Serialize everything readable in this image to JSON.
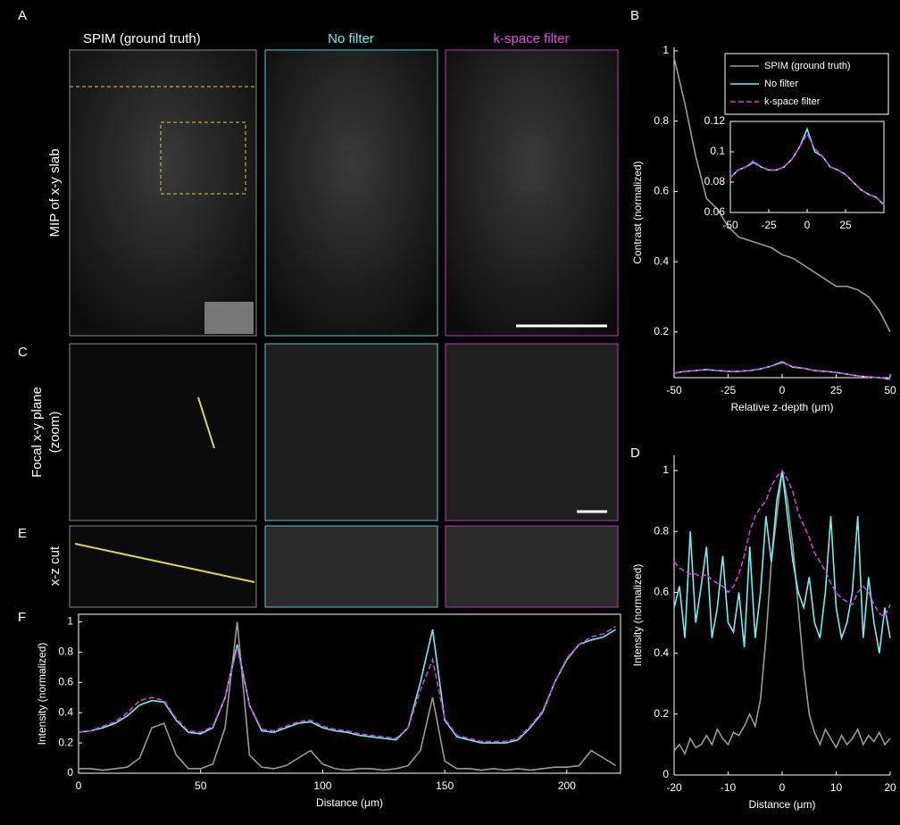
{
  "figure": {
    "panel_labels": [
      "A",
      "B",
      "C",
      "D",
      "E",
      "F"
    ],
    "column_titles": [
      "SPIM (ground truth)",
      "No filter",
      "k-space filter"
    ],
    "row_labels": [
      [
        "MIP of x-y slab"
      ],
      [
        "Focal x-y plane",
        "(zoom)"
      ],
      [
        "x-z cut"
      ]
    ]
  },
  "chart_data": [
    {
      "type": "line",
      "xlabel": "Relative z-depth (μm)",
      "ylabel": "Contrast (normalized)",
      "x": [
        -50,
        -45,
        -40,
        -35,
        -30,
        -25,
        -20,
        -15,
        -10,
        -5,
        0,
        5,
        10,
        15,
        20,
        25,
        30,
        35,
        40,
        45,
        50
      ],
      "xlim": [
        -50,
        50
      ],
      "xticks": [
        -50,
        -25,
        0,
        25,
        50
      ],
      "ylim": [
        0.07,
        1.01
      ],
      "yticks": [
        0.2,
        0.4,
        0.6,
        0.8,
        1
      ],
      "legend": "upper right",
      "series": [
        {
          "name": "SPIM (ground truth)",
          "color": "#9a9a9a",
          "line_style": "solid",
          "values": [
            0.98,
            0.85,
            0.7,
            0.58,
            0.55,
            0.5,
            0.47,
            0.46,
            0.45,
            0.44,
            0.42,
            0.41,
            0.39,
            0.37,
            0.35,
            0.33,
            0.33,
            0.32,
            0.3,
            0.26,
            0.2
          ]
        },
        {
          "name": "No filter",
          "color": "#6ef0ee",
          "line_style": "solid",
          "values": [
            0.083,
            0.088,
            0.09,
            0.093,
            0.09,
            0.088,
            0.088,
            0.09,
            0.095,
            0.103,
            0.115,
            0.1,
            0.097,
            0.09,
            0.088,
            0.085,
            0.08,
            0.075,
            0.072,
            0.07,
            0.065
          ]
        },
        {
          "name": "k-space filter",
          "color": "#d23ed2",
          "line_style": "dashed",
          "values": [
            0.083,
            0.088,
            0.09,
            0.094,
            0.09,
            0.088,
            0.088,
            0.09,
            0.095,
            0.103,
            0.112,
            0.102,
            0.097,
            0.09,
            0.088,
            0.085,
            0.08,
            0.075,
            0.072,
            0.07,
            0.065
          ]
        }
      ]
    },
    {
      "type": "line",
      "x": [
        -50,
        -45,
        -40,
        -35,
        -30,
        -25,
        -20,
        -15,
        -10,
        -5,
        0,
        5,
        10,
        15,
        20,
        25,
        30,
        35,
        40,
        45,
        50
      ],
      "xlim": [
        -50,
        50
      ],
      "xticks": [
        -50,
        -25,
        0,
        25
      ],
      "ylim": [
        0.06,
        0.12
      ],
      "yticks": [
        0.06,
        0.08,
        0.1,
        0.12
      ],
      "series": [
        {
          "color": "#6ef0ee",
          "line_style": "solid",
          "values": [
            0.083,
            0.088,
            0.09,
            0.093,
            0.09,
            0.088,
            0.088,
            0.09,
            0.095,
            0.103,
            0.115,
            0.1,
            0.097,
            0.09,
            0.088,
            0.085,
            0.08,
            0.075,
            0.072,
            0.07,
            0.065
          ]
        },
        {
          "color": "#d23ed2",
          "line_style": "dashed",
          "values": [
            0.083,
            0.088,
            0.09,
            0.094,
            0.09,
            0.088,
            0.088,
            0.09,
            0.095,
            0.103,
            0.112,
            0.102,
            0.097,
            0.09,
            0.088,
            0.085,
            0.08,
            0.075,
            0.072,
            0.07,
            0.065
          ]
        }
      ]
    },
    {
      "type": "line",
      "xlabel": "Distance (μm)",
      "ylabel": "Intensity (normalized)",
      "x": [
        -20,
        -19,
        -18,
        -17,
        -16,
        -15,
        -14,
        -13,
        -12,
        -11,
        -10,
        -9,
        -8,
        -7,
        -6,
        -5,
        -4,
        -3,
        -2,
        -1,
        0,
        1,
        2,
        3,
        4,
        5,
        6,
        7,
        8,
        9,
        10,
        11,
        12,
        13,
        14,
        15,
        16,
        17,
        18,
        19,
        20
      ],
      "xlim": [
        -20,
        20
      ],
      "xticks": [
        -20,
        -10,
        0,
        10,
        20
      ],
      "ylim": [
        0,
        1.05
      ],
      "yticks": [
        0,
        0.2,
        0.4,
        0.6,
        0.8,
        1
      ],
      "series": [
        {
          "color": "#9a9a9a",
          "line_style": "solid",
          "values": [
            0.08,
            0.1,
            0.07,
            0.12,
            0.09,
            0.1,
            0.13,
            0.1,
            0.15,
            0.12,
            0.1,
            0.14,
            0.13,
            0.16,
            0.2,
            0.16,
            0.25,
            0.45,
            0.7,
            0.85,
            1,
            0.9,
            0.75,
            0.55,
            0.35,
            0.2,
            0.14,
            0.1,
            0.15,
            0.12,
            0.09,
            0.13,
            0.1,
            0.12,
            0.15,
            0.1,
            0.13,
            0.11,
            0.14,
            0.1,
            0.12
          ]
        },
        {
          "color": "#6ef0ee",
          "line_style": "solid",
          "values": [
            0.55,
            0.62,
            0.45,
            0.8,
            0.5,
            0.62,
            0.75,
            0.45,
            0.55,
            0.72,
            0.5,
            0.47,
            0.6,
            0.42,
            0.75,
            0.45,
            0.6,
            0.85,
            0.7,
            0.9,
            1,
            0.85,
            0.7,
            0.6,
            0.55,
            0.65,
            0.5,
            0.45,
            0.6,
            0.85,
            0.55,
            0.45,
            0.5,
            0.6,
            0.85,
            0.45,
            0.65,
            0.5,
            0.4,
            0.55,
            0.45
          ]
        },
        {
          "color": "#d23ed2",
          "line_style": "dashed",
          "values": [
            0.7,
            0.68,
            0.67,
            0.66,
            0.66,
            0.65,
            0.66,
            0.64,
            0.63,
            0.62,
            0.6,
            0.62,
            0.66,
            0.72,
            0.8,
            0.85,
            0.88,
            0.9,
            0.95,
            0.98,
            1,
            0.97,
            0.93,
            0.86,
            0.82,
            0.78,
            0.73,
            0.7,
            0.67,
            0.63,
            0.6,
            0.58,
            0.57,
            0.56,
            0.6,
            0.62,
            0.6,
            0.56,
            0.53,
            0.52,
            0.56
          ]
        }
      ]
    },
    {
      "type": "line",
      "xlabel": "Distance (μm)",
      "ylabel": "Intensity (normalized)",
      "x": [
        0,
        5,
        10,
        15,
        20,
        25,
        30,
        35,
        40,
        45,
        50,
        55,
        60,
        65,
        70,
        75,
        80,
        85,
        90,
        95,
        100,
        105,
        110,
        115,
        120,
        125,
        130,
        135,
        140,
        145,
        150,
        155,
        160,
        165,
        170,
        175,
        180,
        185,
        190,
        195,
        200,
        205,
        210,
        215,
        220
      ],
      "xlim": [
        0,
        222
      ],
      "xticks": [
        0,
        50,
        100,
        150,
        200
      ],
      "ylim": [
        0,
        1.05
      ],
      "yticks": [
        0,
        0.2,
        0.4,
        0.6,
        0.8,
        1
      ],
      "series": [
        {
          "color": "#9a9a9a",
          "line_style": "solid",
          "values": [
            0.03,
            0.03,
            0.02,
            0.03,
            0.04,
            0.1,
            0.3,
            0.33,
            0.12,
            0.03,
            0.03,
            0.06,
            0.3,
            1,
            0.12,
            0.04,
            0.03,
            0.05,
            0.1,
            0.15,
            0.06,
            0.03,
            0.02,
            0.03,
            0.03,
            0.02,
            0.03,
            0.05,
            0.15,
            0.5,
            0.08,
            0.03,
            0.03,
            0.02,
            0.03,
            0.02,
            0.03,
            0.02,
            0.03,
            0.04,
            0.04,
            0.05,
            0.15,
            0.1,
            0.05
          ]
        },
        {
          "color": "#6ef0ee",
          "line_style": "solid",
          "values": [
            0.27,
            0.28,
            0.3,
            0.33,
            0.38,
            0.45,
            0.48,
            0.47,
            0.35,
            0.27,
            0.26,
            0.3,
            0.5,
            0.85,
            0.45,
            0.28,
            0.27,
            0.3,
            0.33,
            0.34,
            0.3,
            0.28,
            0.27,
            0.25,
            0.24,
            0.23,
            0.22,
            0.3,
            0.6,
            0.95,
            0.35,
            0.24,
            0.22,
            0.2,
            0.2,
            0.2,
            0.22,
            0.3,
            0.4,
            0.6,
            0.75,
            0.85,
            0.88,
            0.9,
            0.95
          ]
        },
        {
          "color": "#d23ed2",
          "line_style": "dashed",
          "values": [
            0.27,
            0.28,
            0.31,
            0.34,
            0.4,
            0.48,
            0.5,
            0.48,
            0.36,
            0.28,
            0.27,
            0.31,
            0.5,
            0.83,
            0.45,
            0.29,
            0.28,
            0.31,
            0.34,
            0.35,
            0.31,
            0.29,
            0.28,
            0.26,
            0.25,
            0.24,
            0.23,
            0.3,
            0.55,
            0.75,
            0.36,
            0.25,
            0.23,
            0.21,
            0.21,
            0.21,
            0.23,
            0.31,
            0.41,
            0.6,
            0.76,
            0.85,
            0.9,
            0.92,
            0.97
          ]
        }
      ]
    }
  ]
}
